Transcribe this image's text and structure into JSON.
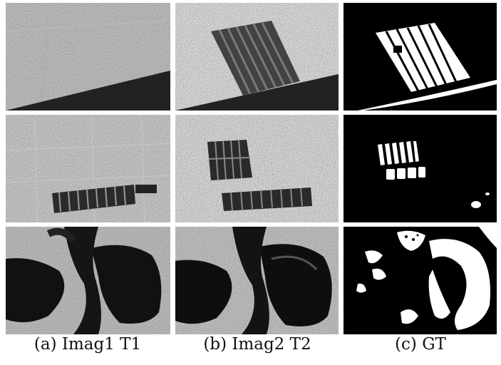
{
  "captions": {
    "col1": "(a) Imag1 T1",
    "col2": "(b) Imag2 T2",
    "col3": "(c) GT"
  },
  "colors": {
    "background": "#ffffff",
    "mask_foreground": "#ffffff",
    "mask_background": "#000000"
  },
  "grid": {
    "rows": 3,
    "columns": [
      "Imag1 T1",
      "Imag2 T2",
      "GT"
    ]
  }
}
